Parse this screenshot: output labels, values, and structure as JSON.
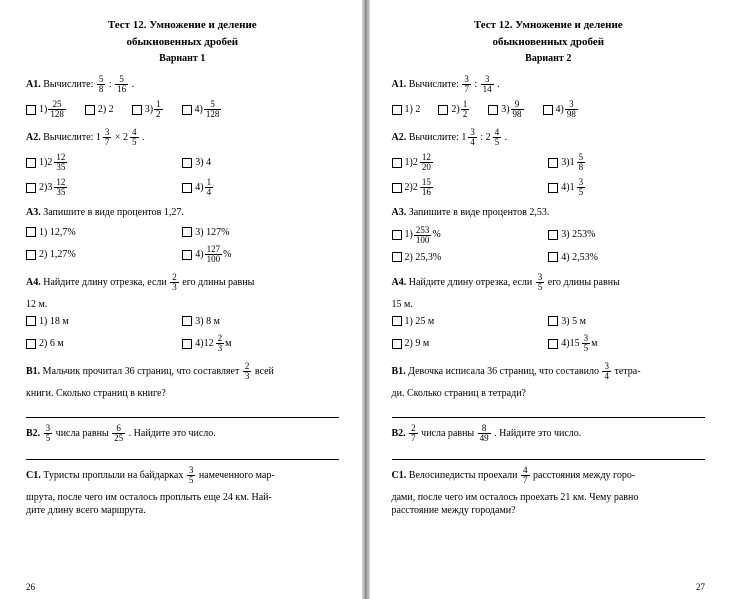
{
  "left": {
    "title1": "Тест 12. Умножение и деление",
    "title2": "обыкновенных дробей",
    "variant": "Вариант 1",
    "a1_label": "А1.",
    "a1_text_pre": " Вычислите: ",
    "a1_f1n": "5",
    "a1_f1d": "8",
    "a1_colon": " : ",
    "a1_f2n": "5",
    "a1_f2d": "16",
    "a1_dot": ".",
    "a1_o1": "1) ",
    "a1_o1fn": "25",
    "a1_o1fd": "128",
    "a1_o2": "2) 2",
    "a1_o3": "3) ",
    "a1_o3fn": "1",
    "a1_o3fd": "2",
    "a1_o4": "4) ",
    "a1_o4fn": "5",
    "a1_o4fd": "128",
    "a2_label": "А2.",
    "a2_text_pre": " Вычислите: ",
    "a2_m1w": "1",
    "a2_m1n": "3",
    "a2_m1d": "7",
    "a2_times": " × ",
    "a2_m2w": "2",
    "a2_m2n": "4",
    "a2_m2d": "5",
    "a2_dot": ".",
    "a2_o1": "1) ",
    "a2_o1w": "2",
    "a2_o1n": "12",
    "a2_o1d": "35",
    "a2_o2": "2) ",
    "a2_o2w": "3",
    "a2_o2n": "12",
    "a2_o2d": "35",
    "a2_o3": "3) 4",
    "a2_o4": "4) ",
    "a2_o4fn": "1",
    "a2_o4fd": "4",
    "a3_label": "А3.",
    "a3_text": " Запишите в виде процентов 1,27.",
    "a3_o1": "1) 12,7%",
    "a3_o2": "2) 1,27%",
    "a3_o3": "3) 127%",
    "a3_o4": "4) ",
    "a3_o4fn": "127",
    "a3_o4fd": "100",
    "a3_o4_suf": "%",
    "a4_label": "А4.",
    "a4_text_pre": " Найдите длину отрезка, если ",
    "a4_fn": "2",
    "a4_fd": "3",
    "a4_text_post": " его длины равны",
    "a4_text_post2": "12 м.",
    "a4_o1": "1) 18 м",
    "a4_o2": "2) 6 м",
    "a4_o3": "3) 8 м",
    "a4_o4": "4) ",
    "a4_o4w": "12",
    "a4_o4n": "2",
    "a4_o4d": "3",
    "a4_o4_suf": " м",
    "b1_label": "В1.",
    "b1_text_pre": " Мальчик прочитал 36 страниц, что составляет ",
    "b1_fn": "2",
    "b1_fd": "3",
    "b1_text_post": " всей",
    "b1_text_post2": "книги. Сколько страниц в книге?",
    "b2_label": "В2.",
    "b2_f1n": "3",
    "b2_f1d": "5",
    "b2_text_mid": " числа равны ",
    "b2_f2n": "6",
    "b2_f2d": "25",
    "b2_text_post": ". Найдите это число.",
    "c1_label": "С1.",
    "c1_text_pre": " Туристы проплыли на байдарках ",
    "c1_fn": "3",
    "c1_fd": "5",
    "c1_text_post": " намеченного мар-",
    "c1_text2": "шрута, после чего им осталось проплыть еще 24 км. Най-",
    "c1_text3": "дите длину всего маршрута.",
    "pagenum": "26"
  },
  "right": {
    "title1": "Тест 12. Умножение и деление",
    "title2": "обыкновенных дробей",
    "variant": "Вариант 2",
    "a1_label": "А1.",
    "a1_text_pre": " Вычислите: ",
    "a1_f1n": "3",
    "a1_f1d": "7",
    "a1_colon": " : ",
    "a1_f2n": "3",
    "a1_f2d": "14",
    "a1_dot": ".",
    "a1_o1": "1) 2",
    "a1_o2": "2) ",
    "a1_o2fn": "1",
    "a1_o2fd": "2",
    "a1_o3": "3) ",
    "a1_o3fn": "9",
    "a1_o3fd": "98",
    "a1_o4": "4) ",
    "a1_o4fn": "3",
    "a1_o4fd": "98",
    "a2_label": "А2.",
    "a2_text_pre": " Вычислите: ",
    "a2_m1w": "1",
    "a2_m1n": "3",
    "a2_m1d": "4",
    "a2_colon": " : ",
    "a2_m2w": "2",
    "a2_m2n": "4",
    "a2_m2d": "5",
    "a2_dot": ".",
    "a2_o1": "1) ",
    "a2_o1w": "2",
    "a2_o1n": "12",
    "a2_o1d": "20",
    "a2_o2": "2) ",
    "a2_o2w": "2",
    "a2_o2n": "15",
    "a2_o2d": "16",
    "a2_o3": "3) ",
    "a2_o3w": "1",
    "a2_o3n": "5",
    "a2_o3d": "8",
    "a2_o4": "4) ",
    "a2_o4w": "1",
    "a2_o4n": "3",
    "a2_o4d": "5",
    "a3_label": "А3.",
    "a3_text": "Запишите в виде процентов 2,53.",
    "a3_o1": "1) ",
    "a3_o1fn": "253",
    "a3_o1fd": "100",
    "a3_o1_suf": "%",
    "a3_o2": "2) 25,3%",
    "a3_o3": "3) 253%",
    "a3_o4": "4) 2,53%",
    "a4_label": "А4.",
    "a4_text_pre": " Найдите длину отрезка, если ",
    "a4_fn": "3",
    "a4_fd": "5",
    "a4_text_post": " его длины равны",
    "a4_text_post2": "15 м.",
    "a4_o1": "1) 25 м",
    "a4_o2": "2) 9 м",
    "a4_o3": "3) 5 м",
    "a4_o4": "4) ",
    "a4_o4w": "15",
    "a4_o4n": "3",
    "a4_o4d": "5",
    "a4_o4_suf": " м",
    "b1_label": "В1.",
    "b1_text_pre": " Девочка исписала 36 страниц, что составило ",
    "b1_fn": "3",
    "b1_fd": "4",
    "b1_text_post": " тетра-",
    "b1_text_post2": "ди. Сколько страниц в тетради?",
    "b2_label": "В2.",
    "b2_f1n": "2",
    "b2_f1d": "7",
    "b2_text_mid": " числа равны ",
    "b2_f2n": "8",
    "b2_f2d": "49",
    "b2_text_post": ". Найдите это число.",
    "c1_label": "С1.",
    "c1_text_pre": " Велосипедисты проехали ",
    "c1_fn": "4",
    "c1_fd": "7",
    "c1_text_post": " расстояния между горо-",
    "c1_text2": "дами, после чего им осталось проехать 21 км. Чему равно",
    "c1_text3": "расстояние между городами?",
    "pagenum": "27"
  }
}
